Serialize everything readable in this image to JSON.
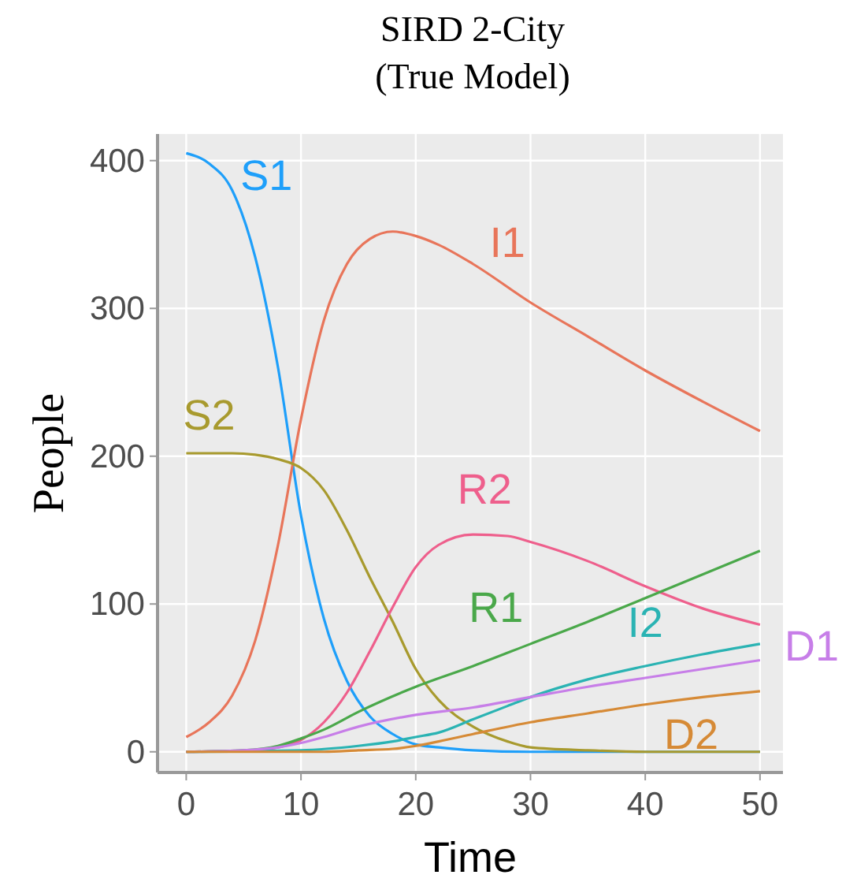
{
  "chart_data": {
    "type": "line",
    "title": "SIRD 2-City\n(True Model)",
    "xlabel": "Time",
    "ylabel": "People",
    "xlim": [
      -2.5,
      52
    ],
    "ylim": [
      -14,
      418
    ],
    "xticks": [
      0,
      10,
      20,
      30,
      40,
      50
    ],
    "yticks": [
      0,
      100,
      200,
      300,
      400
    ],
    "grid": true,
    "marker": "none",
    "line_style": "solid",
    "series": [
      {
        "name": "S1",
        "color": "#1e9ffa",
        "x": [
          0,
          2,
          4,
          6,
          8,
          10,
          12,
          14,
          16,
          18,
          20,
          22,
          25,
          30,
          40,
          50
        ],
        "values": [
          405,
          398,
          380,
          335,
          260,
          160,
          90,
          48,
          24,
          12,
          5,
          3,
          1,
          0,
          0,
          0
        ]
      },
      {
        "name": "I1",
        "color": "#e8755a",
        "x": [
          0,
          2,
          4,
          6,
          8,
          10,
          12,
          14,
          16,
          18,
          20,
          22,
          25,
          30,
          35,
          40,
          45,
          50
        ],
        "values": [
          10,
          20,
          38,
          75,
          140,
          225,
          292,
          330,
          347,
          352,
          349,
          343,
          330,
          304,
          281,
          258,
          237,
          217
        ]
      },
      {
        "name": "S2",
        "color": "#a89a2e",
        "x": [
          0,
          4,
          6,
          8,
          10,
          12,
          14,
          16,
          18,
          20,
          22,
          25,
          28,
          30,
          35,
          40,
          50
        ],
        "values": [
          202,
          202,
          201,
          198,
          192,
          177,
          150,
          118,
          88,
          56,
          35,
          17,
          7,
          3,
          1,
          0,
          0
        ]
      },
      {
        "name": "R2",
        "color": "#ee5f8c",
        "x": [
          0,
          6,
          8,
          10,
          12,
          14,
          16,
          18,
          20,
          22,
          25,
          28,
          30,
          35,
          40,
          45,
          50
        ],
        "values": [
          0,
          1,
          3,
          8,
          20,
          40,
          68,
          98,
          125,
          140,
          147,
          146,
          142,
          129,
          112,
          97,
          86
        ]
      },
      {
        "name": "R1",
        "color": "#4aa84a",
        "x": [
          0,
          5,
          8,
          10,
          12,
          15,
          20,
          25,
          30,
          35,
          40,
          45,
          50
        ],
        "values": [
          0,
          1,
          4,
          9,
          15,
          27,
          44,
          58,
          73,
          88,
          104,
          120,
          136
        ]
      },
      {
        "name": "I2",
        "color": "#2ab3b3",
        "x": [
          0,
          10,
          15,
          18,
          20,
          22,
          25,
          28,
          30,
          35,
          40,
          45,
          50
        ],
        "values": [
          0,
          1,
          4,
          7,
          10,
          13,
          22,
          31,
          37,
          49,
          58,
          66,
          73
        ]
      },
      {
        "name": "D1",
        "color": "#c77ee8",
        "x": [
          0,
          5,
          8,
          10,
          12,
          15,
          20,
          25,
          30,
          35,
          40,
          45,
          50
        ],
        "values": [
          0,
          1,
          3,
          6,
          10,
          17,
          25,
          30,
          37,
          44,
          50,
          56,
          62
        ]
      },
      {
        "name": "D2",
        "color": "#d68a36",
        "x": [
          0,
          12,
          15,
          18,
          20,
          22,
          25,
          30,
          35,
          40,
          45,
          50
        ],
        "values": [
          0,
          0,
          1,
          2,
          4,
          7,
          12,
          20,
          26,
          32,
          37,
          41
        ]
      }
    ]
  }
}
